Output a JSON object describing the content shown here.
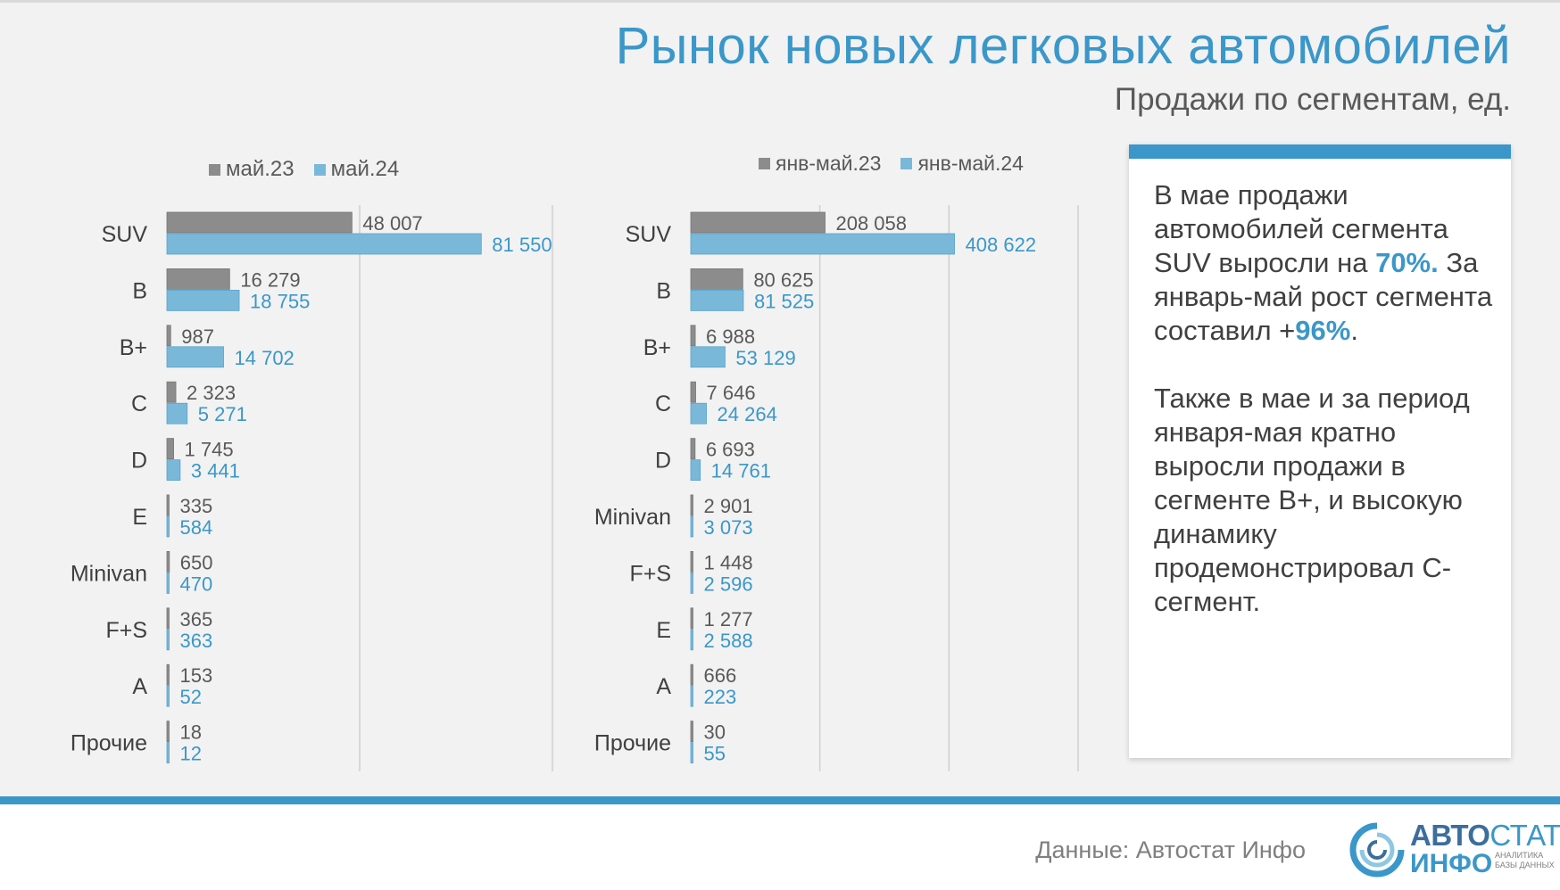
{
  "header": {
    "title": "Рынок новых легковых автомобилей",
    "subtitle": "Продажи по сегментам, ед."
  },
  "colors": {
    "series_prev": "#8c8c8c",
    "series_curr": "#7ab8d9",
    "accent": "#3b97c9"
  },
  "chart_data": [
    {
      "type": "bar",
      "orientation": "horizontal",
      "categories": [
        "SUV",
        "B",
        "B+",
        "C",
        "D",
        "E",
        "Minivan",
        "F+S",
        "A",
        "Прочие"
      ],
      "labels": [
        "48 007",
        "16 279",
        "987",
        "2 323",
        "1 745",
        "335",
        "650",
        "365",
        "153",
        "18"
      ],
      "labels2": [
        "81 550",
        "18 755",
        "14 702",
        "5 271",
        "3 441",
        "584",
        "470",
        "363",
        "52",
        "12"
      ],
      "series": [
        {
          "name": "май.23",
          "values": [
            48007,
            16279,
            987,
            2323,
            1745,
            335,
            650,
            365,
            153,
            18
          ]
        },
        {
          "name": "май.24",
          "values": [
            81550,
            18755,
            14702,
            5271,
            3441,
            584,
            470,
            363,
            52,
            12
          ]
        }
      ],
      "xlim": [
        0,
        100000
      ],
      "grid": true
    },
    {
      "type": "bar",
      "orientation": "horizontal",
      "categories": [
        "SUV",
        "B",
        "B+",
        "C",
        "D",
        "Minivan",
        "F+S",
        "E",
        "A",
        "Прочие"
      ],
      "labels": [
        "208 058",
        "80 625",
        "6 988",
        "7 646",
        "6 693",
        "2 901",
        "1 448",
        "1 277",
        "666",
        "30"
      ],
      "labels2": [
        "408 622",
        "81 525",
        "53 129",
        "24 264",
        "14 761",
        "3 073",
        "2 596",
        "2 588",
        "223",
        "55"
      ],
      "series": [
        {
          "name": "янв-май.23",
          "values": [
            208058,
            80625,
            6988,
            7646,
            6693,
            2901,
            1448,
            1277,
            666,
            30
          ]
        },
        {
          "name": "янв-май.24",
          "values": [
            408622,
            81525,
            53129,
            24264,
            14761,
            3073,
            2596,
            2588,
            223,
            55
          ]
        }
      ],
      "xlim": [
        0,
        600000
      ],
      "grid": true
    }
  ],
  "info": {
    "p1_a": "В мае продажи автомобилей сегмента SUV выросли на ",
    "p1_h1": "70%.",
    "p1_b": " За январь-май рост сегмента составил +",
    "p1_h2": "96%",
    "p1_c": ".",
    "p2": "Также в мае и за период января-мая кратно выросли продажи в сегменте B+, и высокую динамику продемонстрировал С-сегмент."
  },
  "footer": {
    "source": "Данные: Автостат Инфо",
    "logo_part1": "АВТО",
    "logo_part2": "СТАТ",
    "logo_line2": "ИНФО",
    "logo_tag": "АНАЛИТИКА БАЗЫ ДАННЫХ"
  }
}
